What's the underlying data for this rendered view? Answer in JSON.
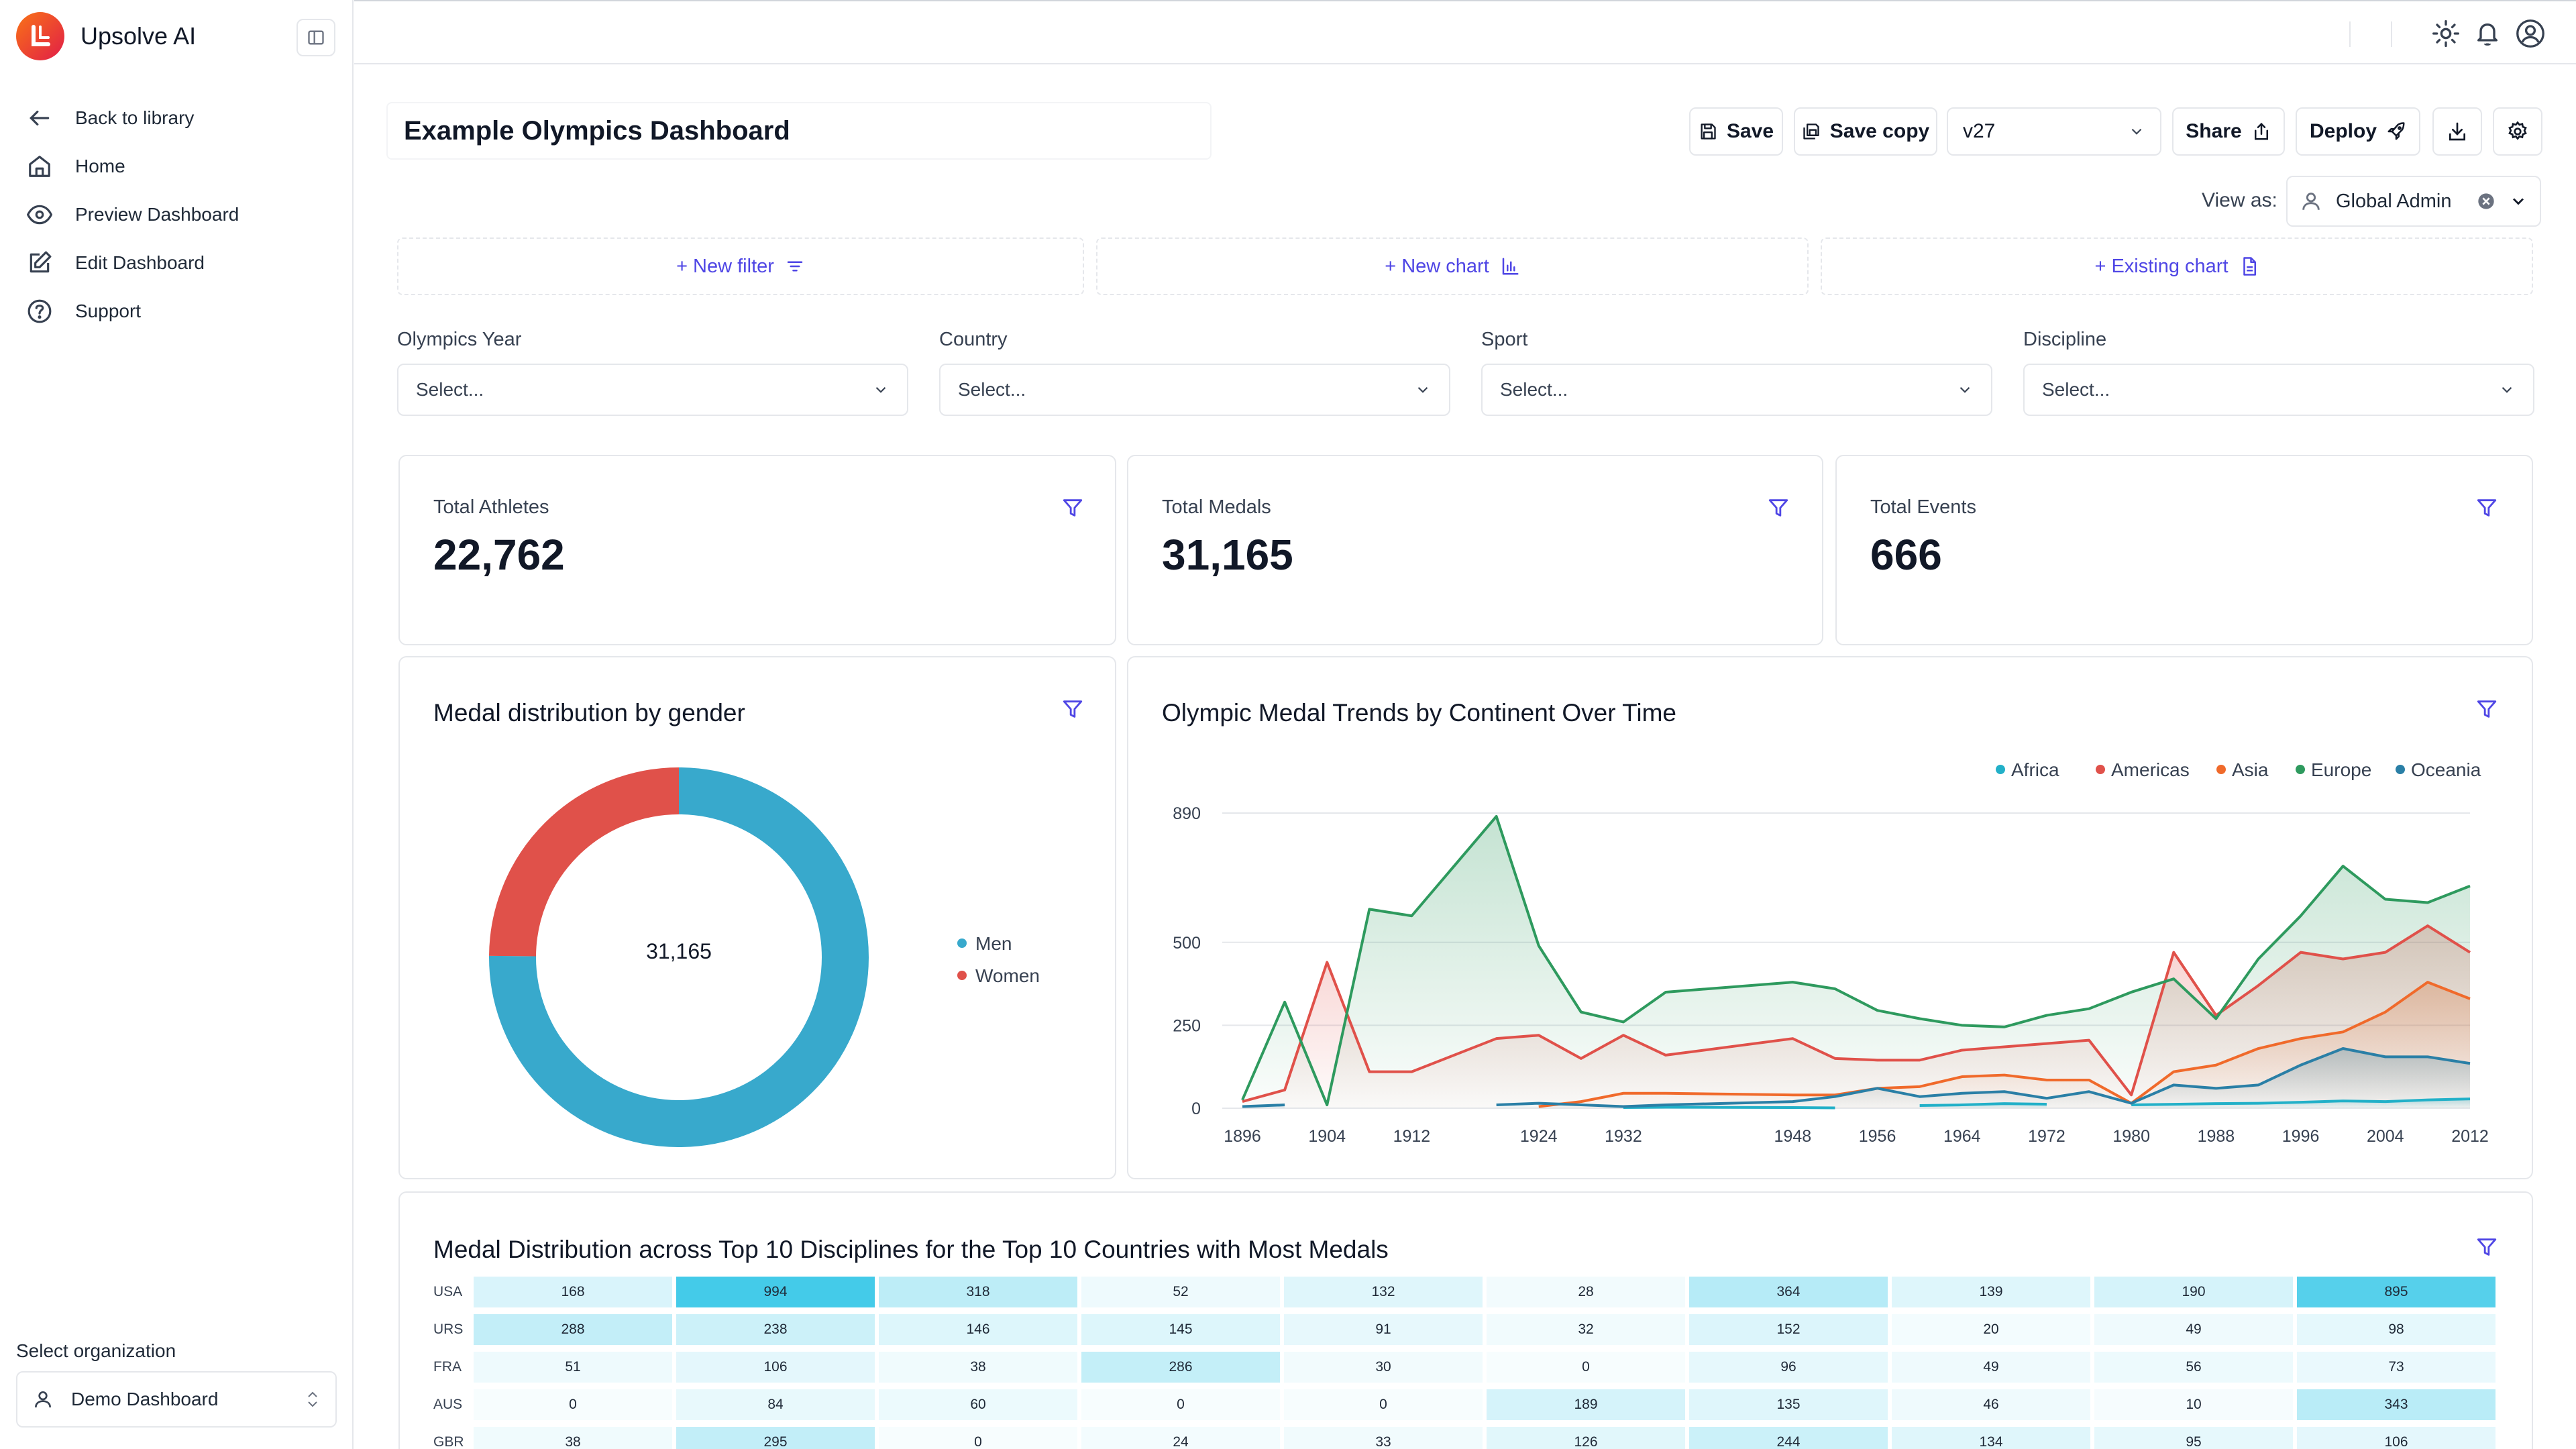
{
  "brand": {
    "name": "Upsolve AI"
  },
  "nav": [
    {
      "label": "Back to library",
      "icon": "arrow-left-icon"
    },
    {
      "label": "Home",
      "icon": "home-icon"
    },
    {
      "label": "Preview Dashboard",
      "icon": "eye-icon"
    },
    {
      "label": "Edit Dashboard",
      "icon": "edit-icon"
    },
    {
      "label": "Support",
      "icon": "help-circle-icon"
    }
  ],
  "organization": {
    "label": "Select organization",
    "value": "Demo Dashboard"
  },
  "header": {
    "title": "Example Olympics Dashboard",
    "save": "Save",
    "save_copy": "Save copy",
    "version": "v27",
    "share": "Share",
    "deploy": "Deploy",
    "view_as_label": "View as:",
    "view_as_value": "Global Admin"
  },
  "add_bar": {
    "new_filter": "+ New filter",
    "new_chart": "+ New chart",
    "existing_chart": "+ Existing chart"
  },
  "filters": [
    {
      "label": "Olympics Year",
      "placeholder": "Select..."
    },
    {
      "label": "Country",
      "placeholder": "Select..."
    },
    {
      "label": "Sport",
      "placeholder": "Select..."
    },
    {
      "label": "Discipline",
      "placeholder": "Select..."
    }
  ],
  "kpis": [
    {
      "label": "Total Athletes",
      "value": "22,762"
    },
    {
      "label": "Total Medals",
      "value": "31,165"
    },
    {
      "label": "Total Events",
      "value": "666"
    }
  ],
  "chart_data": [
    {
      "type": "pie",
      "title": "Medal distribution by gender",
      "center_label": "31,165",
      "categories": [
        "Men",
        "Women"
      ],
      "values": [
        23410,
        7755
      ],
      "colors": [
        "#38a9cc",
        "#e0514a"
      ]
    },
    {
      "type": "area",
      "title": "Olympic Medal Trends by Continent Over Time",
      "x": [
        1896,
        1900,
        1904,
        1908,
        1912,
        1920,
        1924,
        1928,
        1932,
        1936,
        1948,
        1952,
        1956,
        1960,
        1964,
        1968,
        1972,
        1976,
        1980,
        1984,
        1988,
        1992,
        1996,
        2000,
        2004,
        2008,
        2012
      ],
      "x_ticks": [
        "1896",
        "1904",
        "1912",
        "1924",
        "1932",
        "1948",
        "1956",
        "1964",
        "1972",
        "1980",
        "1988",
        "1996",
        "2004",
        "2012"
      ],
      "y_ticks": [
        0,
        250,
        500,
        890
      ],
      "ylim": [
        0,
        890
      ],
      "series": [
        {
          "name": "Africa",
          "color": "#22b0c8",
          "values": [
            null,
            null,
            null,
            null,
            null,
            null,
            null,
            null,
            2,
            3,
            2,
            1,
            null,
            8,
            10,
            14,
            12,
            null,
            10,
            12,
            14,
            15,
            18,
            22,
            20,
            25,
            28
          ]
        },
        {
          "name": "Americas",
          "color": "#e0514a",
          "values": [
            20,
            55,
            440,
            110,
            110,
            210,
            220,
            150,
            220,
            160,
            210,
            150,
            145,
            145,
            175,
            185,
            195,
            205,
            40,
            470,
            280,
            370,
            470,
            450,
            470,
            550,
            470
          ]
        },
        {
          "name": "Asia",
          "color": "#f06a2b",
          "values": [
            null,
            null,
            null,
            null,
            null,
            null,
            5,
            20,
            45,
            45,
            40,
            40,
            60,
            65,
            95,
            100,
            85,
            85,
            15,
            110,
            130,
            180,
            210,
            230,
            290,
            380,
            330
          ]
        },
        {
          "name": "Europe",
          "color": "#2e9a5e",
          "values": [
            25,
            320,
            10,
            600,
            580,
            880,
            490,
            290,
            260,
            350,
            380,
            360,
            295,
            270,
            250,
            245,
            280,
            300,
            350,
            390,
            270,
            450,
            580,
            730,
            630,
            620,
            670
          ]
        },
        {
          "name": "Oceania",
          "color": "#2a7fa6",
          "values": [
            5,
            10,
            null,
            null,
            null,
            10,
            15,
            10,
            5,
            10,
            20,
            35,
            60,
            35,
            45,
            50,
            30,
            50,
            15,
            70,
            60,
            70,
            130,
            180,
            155,
            155,
            135
          ]
        }
      ]
    },
    {
      "type": "heatmap",
      "title": "Medal Distribution across Top 10 Disciplines for the Top 10 Countries with Most Medals",
      "rows": [
        "USA",
        "URS",
        "FRA",
        "AUS",
        "GBR"
      ],
      "values": [
        [
          168,
          994,
          318,
          52,
          132,
          28,
          364,
          139,
          190,
          895
        ],
        [
          288,
          238,
          146,
          145,
          91,
          32,
          152,
          20,
          49,
          98
        ],
        [
          51,
          106,
          38,
          286,
          30,
          0,
          96,
          49,
          56,
          73
        ],
        [
          0,
          84,
          60,
          0,
          0,
          189,
          135,
          46,
          10,
          343
        ],
        [
          38,
          295,
          0,
          24,
          33,
          126,
          244,
          134,
          95,
          106
        ]
      ],
      "max": 994
    }
  ]
}
